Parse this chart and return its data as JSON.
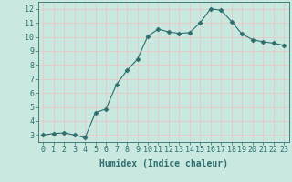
{
  "x": [
    0,
    1,
    2,
    3,
    4,
    5,
    6,
    7,
    8,
    9,
    10,
    11,
    12,
    13,
    14,
    15,
    16,
    17,
    18,
    19,
    20,
    21,
    22,
    23
  ],
  "y": [
    3.0,
    3.1,
    3.15,
    3.0,
    2.8,
    4.6,
    4.85,
    6.6,
    7.6,
    8.4,
    10.05,
    10.55,
    10.35,
    10.25,
    10.3,
    11.0,
    12.0,
    11.9,
    11.1,
    10.2,
    9.8,
    9.65,
    9.55,
    9.4
  ],
  "line_color": "#2d6e6e",
  "marker": "D",
  "marker_size": 2.5,
  "bg_color": "#c8e8e0",
  "grid_color": "#e8c8c8",
  "xlabel": "Humidex (Indice chaleur)",
  "xlim": [
    -0.5,
    23.5
  ],
  "ylim": [
    2.5,
    12.5
  ],
  "yticks": [
    3,
    4,
    5,
    6,
    7,
    8,
    9,
    10,
    11,
    12
  ],
  "xticks": [
    0,
    1,
    2,
    3,
    4,
    5,
    6,
    7,
    8,
    9,
    10,
    11,
    12,
    13,
    14,
    15,
    16,
    17,
    18,
    19,
    20,
    21,
    22,
    23
  ],
  "tick_color": "#2d6e6e",
  "label_fontsize": 7,
  "tick_fontsize": 6
}
